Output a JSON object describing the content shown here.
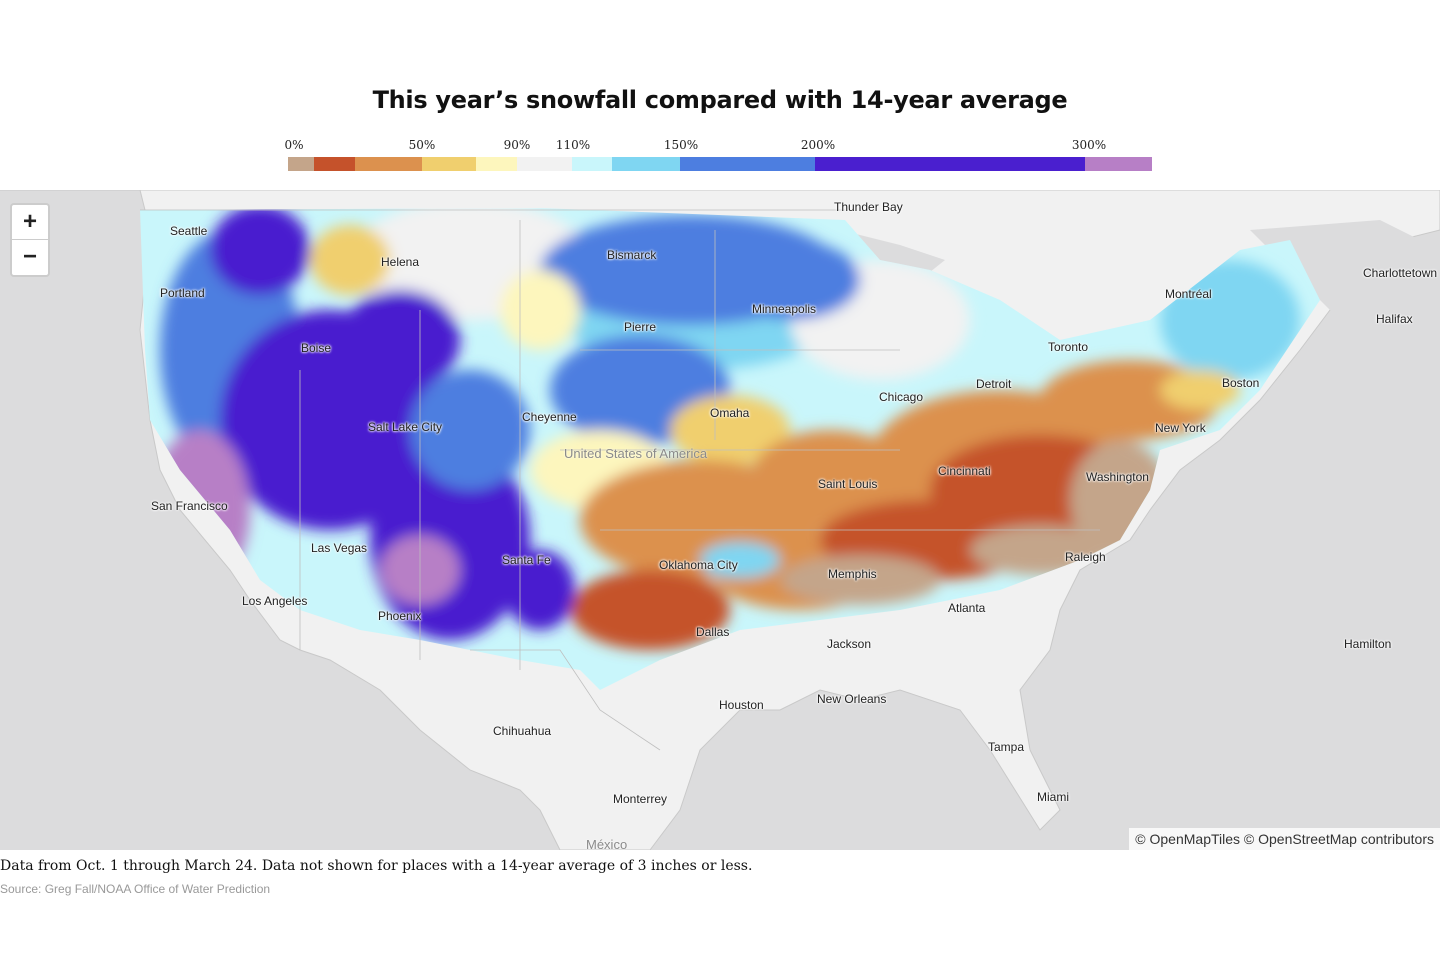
{
  "title": "This year’s snowfall compared with 14-year average",
  "legend": {
    "labels": [
      {
        "text": "0%"
      },
      {
        "text": "50%"
      },
      {
        "text": "90%"
      },
      {
        "text": "110%"
      },
      {
        "text": "150%"
      },
      {
        "text": "200%"
      },
      {
        "text": "300%"
      }
    ],
    "colors": [
      "#c4a58a",
      "#c5522b",
      "#dc914e",
      "#f0cf6e",
      "#fdf6bd",
      "#f2f2f2",
      "#c9f6fb",
      "#7fd6f2",
      "#4d7ee0",
      "#4a1fcf",
      "#b77fc6"
    ]
  },
  "zoom": {
    "in": "+",
    "out": "−"
  },
  "cities": [
    {
      "name": "Thunder Bay"
    },
    {
      "name": "Seattle"
    },
    {
      "name": "Helena"
    },
    {
      "name": "Bismarck"
    },
    {
      "name": "Charlottetown"
    },
    {
      "name": "Portland"
    },
    {
      "name": "Montréal"
    },
    {
      "name": "Minneapolis"
    },
    {
      "name": "Halifax"
    },
    {
      "name": "Pierre"
    },
    {
      "name": "Boise"
    },
    {
      "name": "Toronto"
    },
    {
      "name": "Detroit"
    },
    {
      "name": "Boston"
    },
    {
      "name": "Chicago"
    },
    {
      "name": "Omaha"
    },
    {
      "name": "Cheyenne"
    },
    {
      "name": "Salt Lake City"
    },
    {
      "name": "New York"
    },
    {
      "name": "Cincinnati"
    },
    {
      "name": "Washington"
    },
    {
      "name": "Saint Louis"
    },
    {
      "name": "San Francisco"
    },
    {
      "name": "Las Vegas"
    },
    {
      "name": "Raleigh"
    },
    {
      "name": "Santa Fe"
    },
    {
      "name": "Oklahoma City"
    },
    {
      "name": "Memphis"
    },
    {
      "name": "Los Angeles"
    },
    {
      "name": "Atlanta"
    },
    {
      "name": "Phoenix"
    },
    {
      "name": "Dallas"
    },
    {
      "name": "Jackson"
    },
    {
      "name": "Hamilton"
    },
    {
      "name": "New Orleans"
    },
    {
      "name": "Houston"
    },
    {
      "name": "Chihuahua"
    },
    {
      "name": "Tampa"
    },
    {
      "name": "Miami"
    },
    {
      "name": "Monterrey"
    }
  ],
  "countries": [
    {
      "name": "United States of America"
    },
    {
      "name": "México"
    }
  ],
  "attribution": "© OpenMapTiles © OpenStreetMap contributors",
  "note": "Data from Oct. 1 through March 24. Data not shown for places with a 14-year average of 3 inches or less.",
  "source": "Source: Greg Fall/NOAA Office of Water Prediction"
}
